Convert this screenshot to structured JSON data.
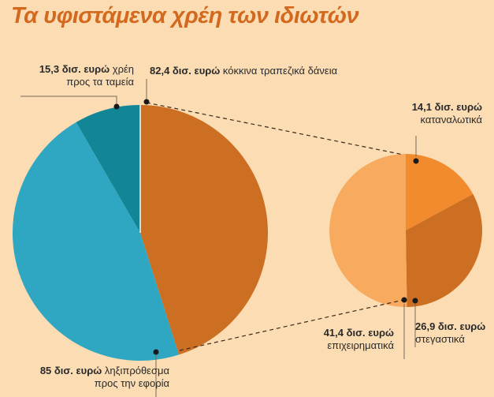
{
  "title": "Τα υφιστάμενα χρέη των ιδιωτών",
  "colors": {
    "background": "#fbdcb3",
    "title": "#d2691e",
    "teal_light": "#2fa7c2",
    "teal_dark": "#128596",
    "orange_main": "#cc6f23",
    "sub_consumer": "#f28a2e",
    "sub_housing": "#cc6f23",
    "sub_business": "#f8aa5e"
  },
  "chart_data": [
    {
      "type": "pie",
      "slices": [
        {
          "label_value": "82,4 δισ. ευρώ",
          "label_text": "κόκκινα τραπεζικά δάνεια",
          "value": 82.4,
          "color": "#cc6f23"
        },
        {
          "label_value": "85 δισ. ευρώ",
          "label_text": "ληξιπρόθεσμα",
          "label_text2": "προς την εφορία",
          "value": 85,
          "color": "#2fa7c2"
        },
        {
          "label_value": "15,3 δισ. ευρώ",
          "label_text": "χρέη",
          "label_text2": "προς τα ταμεία",
          "value": 15.3,
          "color": "#128596"
        }
      ]
    },
    {
      "type": "pie",
      "slices": [
        {
          "label_value": "14,1 δισ. ευρώ",
          "label_text": "καταναλωτικά",
          "value": 14.1,
          "color": "#f28a2e"
        },
        {
          "label_value": "26,9 δισ. ευρώ",
          "label_text": "στεγαστικά",
          "value": 26.9,
          "color": "#cc6f23"
        },
        {
          "label_value": "41,4 δισ. ευρώ",
          "label_text": "επιχειρηματικά",
          "value": 41.4,
          "color": "#f8aa5e"
        }
      ]
    }
  ]
}
